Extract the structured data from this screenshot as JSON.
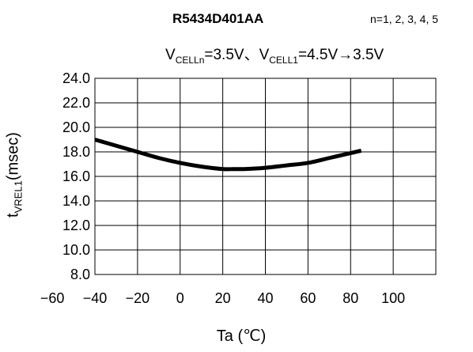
{
  "chart_data": {
    "type": "line",
    "title": "R5434D401AA",
    "condition_n": "n=1, 2, 3, 4, 5",
    "condition_v": {
      "v1": "V",
      "s1": "CELLn",
      "mid": "=3.5V、V",
      "s2": "CELL1",
      "end": "=4.5V→3.5V"
    },
    "xlabel": "Ta (℃)",
    "ylabel": {
      "main": "t",
      "sub": "VREL1",
      "unit": "(msec)"
    },
    "xlim": [
      -60,
      100
    ],
    "ylim": [
      8.0,
      24.0
    ],
    "xticks": [
      "−60",
      "−40",
      "−20",
      "0",
      "20",
      "40",
      "60",
      "80",
      "100"
    ],
    "yticks": [
      "8.0",
      "10.0",
      "12.0",
      "14.0",
      "16.0",
      "18.0",
      "20.0",
      "22.0",
      "24.0"
    ],
    "grid": true,
    "series": [
      {
        "x": [
          -40,
          -30,
          -20,
          -10,
          0,
          10,
          20,
          25,
          30,
          40,
          50,
          60,
          70,
          80,
          85
        ],
        "y": [
          19.0,
          18.5,
          18.0,
          17.5,
          17.1,
          16.8,
          16.6,
          16.6,
          16.6,
          16.7,
          16.9,
          17.1,
          17.5,
          17.9,
          18.1
        ]
      }
    ]
  },
  "colors": {
    "curve": "#000000",
    "grid": "#000000"
  }
}
